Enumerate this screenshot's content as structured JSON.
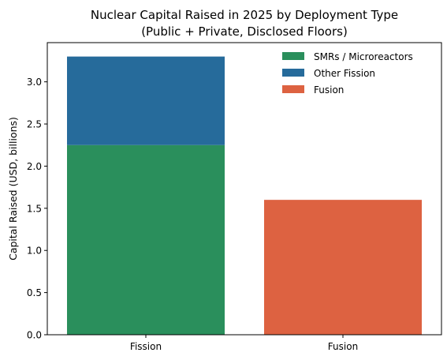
{
  "chart_data": {
    "type": "bar",
    "stacked": true,
    "title": "Nuclear Capital Raised in 2025 by Deployment Type",
    "subtitle": "(Public + Private, Disclosed Floors)",
    "xlabel": "",
    "ylabel": "Capital Raised (USD, billions)",
    "categories": [
      "Fission",
      "Fusion"
    ],
    "ylim": [
      0,
      3.465
    ],
    "yticks": [
      0.0,
      0.5,
      1.0,
      1.5,
      2.0,
      2.5,
      3.0
    ],
    "ytick_labels": [
      "0.0",
      "0.5",
      "1.0",
      "1.5",
      "2.0",
      "2.5",
      "3.0"
    ],
    "grid": false,
    "legend_position": "top-right",
    "series": [
      {
        "name": "SMRs / Microreactors",
        "color": "#2a8f5c",
        "values": [
          2.25,
          0
        ]
      },
      {
        "name": "Other Fission",
        "color": "#266b9b",
        "values": [
          1.05,
          0
        ]
      },
      {
        "name": "Fusion",
        "color": "#dd6241",
        "values": [
          0,
          1.6
        ]
      }
    ]
  }
}
